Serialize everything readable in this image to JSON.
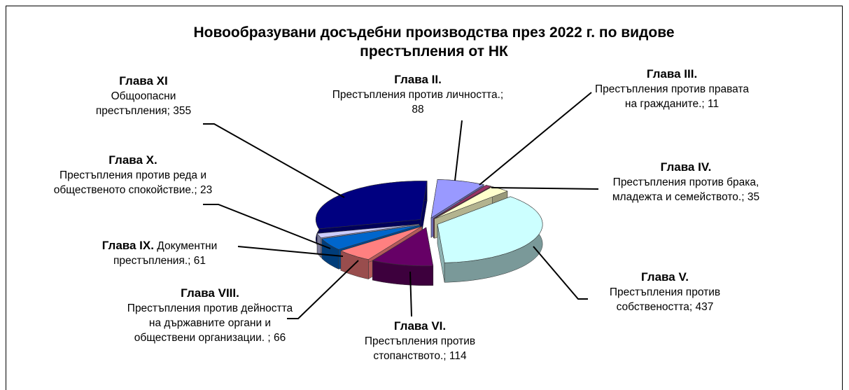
{
  "chart_data": {
    "type": "pie3d",
    "title": "Новообразувани досъдебни производства през 2022 г. по видове престъпления от НК",
    "categories": [
      "Глава II.",
      "Глава III.",
      "Глава IV.",
      "Глава V.",
      "Глава VI.",
      "Глава VIII.",
      "Глава IX.",
      "Глава X.",
      "Глава XI"
    ],
    "values": [
      88,
      11,
      35,
      437,
      114,
      66,
      61,
      23,
      355
    ],
    "value_labels": [
      "Престъпления против личността.; 88",
      "Престъпления против правата на гражданите.; 11",
      "Престъпления против брака, младежта и семейството.; 35",
      "Престъпления против собствеността; 437",
      "Престъпления против стопанството.; 114",
      "Престъпления против дейността на държавните органи и обществени организации. ; 66",
      "Документни престъпления.; 61",
      "Престъпления против реда и общественото спокойствие.; 23",
      "Общоопасни престъпления; 355"
    ],
    "colors": [
      "#9999ff",
      "#993366",
      "#ffffcc",
      "#ccffff",
      "#660066",
      "#ff8080",
      "#0066cc",
      "#ccccff",
      "#000080"
    ]
  }
}
